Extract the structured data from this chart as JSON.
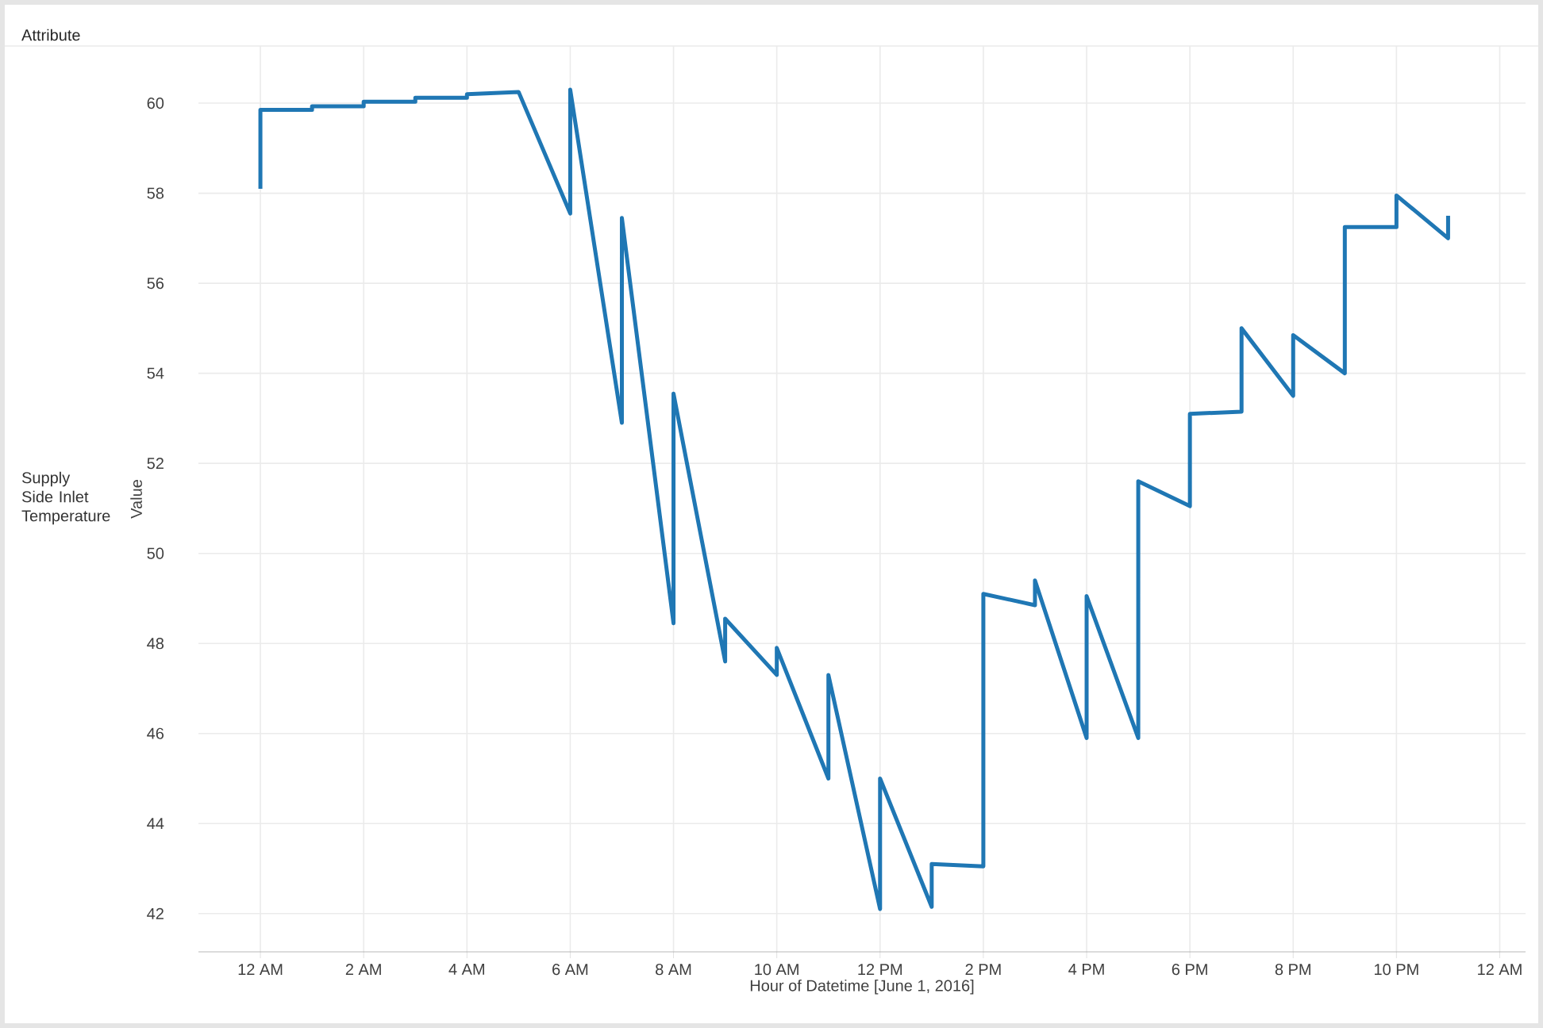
{
  "chart_data": {
    "type": "line",
    "legend_title": "Attribute",
    "xlabel": "Hour of Datetime [June 1, 2016]",
    "ylabel": "Value",
    "x": [
      "2016-06-01T00:00",
      "2016-06-01T00:00",
      "2016-06-01T01:00",
      "2016-06-01T01:00",
      "2016-06-01T02:00",
      "2016-06-01T02:00",
      "2016-06-01T03:00",
      "2016-06-01T03:00",
      "2016-06-01T04:00",
      "2016-06-01T04:00",
      "2016-06-01T05:00",
      "2016-06-01T06:00",
      "2016-06-01T06:00",
      "2016-06-01T07:00",
      "2016-06-01T07:00",
      "2016-06-01T08:00",
      "2016-06-01T08:00",
      "2016-06-01T09:00",
      "2016-06-01T09:00",
      "2016-06-01T10:00",
      "2016-06-01T10:00",
      "2016-06-01T11:00",
      "2016-06-01T11:00",
      "2016-06-01T12:00",
      "2016-06-01T12:00",
      "2016-06-01T13:00",
      "2016-06-01T13:00",
      "2016-06-01T14:00",
      "2016-06-01T14:00",
      "2016-06-01T15:00",
      "2016-06-01T15:00",
      "2016-06-01T16:00",
      "2016-06-01T16:00",
      "2016-06-01T17:00",
      "2016-06-01T17:00",
      "2016-06-01T18:00",
      "2016-06-01T18:00",
      "2016-06-01T19:00",
      "2016-06-01T19:00",
      "2016-06-01T20:00",
      "2016-06-01T20:00",
      "2016-06-01T21:00",
      "2016-06-01T21:00",
      "2016-06-01T22:00",
      "2016-06-01T22:00",
      "2016-06-01T23:00",
      "2016-06-01T23:00"
    ],
    "series": [
      {
        "name": "Supply Side Inlet Temperature",
        "color": "#1f77b4",
        "values": [
          58.1,
          59.85,
          59.85,
          59.93,
          59.93,
          60.03,
          60.03,
          60.12,
          60.12,
          60.2,
          60.25,
          57.55,
          60.3,
          52.9,
          57.45,
          48.45,
          53.55,
          47.6,
          48.55,
          47.3,
          47.9,
          45.0,
          47.3,
          42.1,
          45.0,
          42.15,
          43.1,
          43.05,
          49.1,
          48.85,
          49.4,
          45.9,
          49.05,
          45.9,
          51.6,
          51.05,
          53.1,
          53.15,
          55.0,
          53.5,
          54.85,
          54.0,
          57.25,
          57.25,
          57.95,
          57.0,
          57.5
        ]
      }
    ],
    "xlim": [
      "2016-05-31T22:48",
      "2016-06-02T00:30"
    ],
    "ylim": [
      41.15,
      61.27
    ],
    "xticks": [
      {
        "value": "2016-06-01T00:00",
        "label": "12 AM"
      },
      {
        "value": "2016-06-01T02:00",
        "label": "2 AM"
      },
      {
        "value": "2016-06-01T04:00",
        "label": "4 AM"
      },
      {
        "value": "2016-06-01T06:00",
        "label": "6 AM"
      },
      {
        "value": "2016-06-01T08:00",
        "label": "8 AM"
      },
      {
        "value": "2016-06-01T10:00",
        "label": "10 AM"
      },
      {
        "value": "2016-06-01T12:00",
        "label": "12 PM"
      },
      {
        "value": "2016-06-01T14:00",
        "label": "2 PM"
      },
      {
        "value": "2016-06-01T16:00",
        "label": "4 PM"
      },
      {
        "value": "2016-06-01T18:00",
        "label": "6 PM"
      },
      {
        "value": "2016-06-01T20:00",
        "label": "8 PM"
      },
      {
        "value": "2016-06-01T22:00",
        "label": "10 PM"
      },
      {
        "value": "2016-06-02T00:00",
        "label": "12 AM"
      }
    ],
    "yticks": [
      42,
      44,
      46,
      48,
      50,
      52,
      54,
      56,
      58,
      60
    ],
    "grid": true
  }
}
